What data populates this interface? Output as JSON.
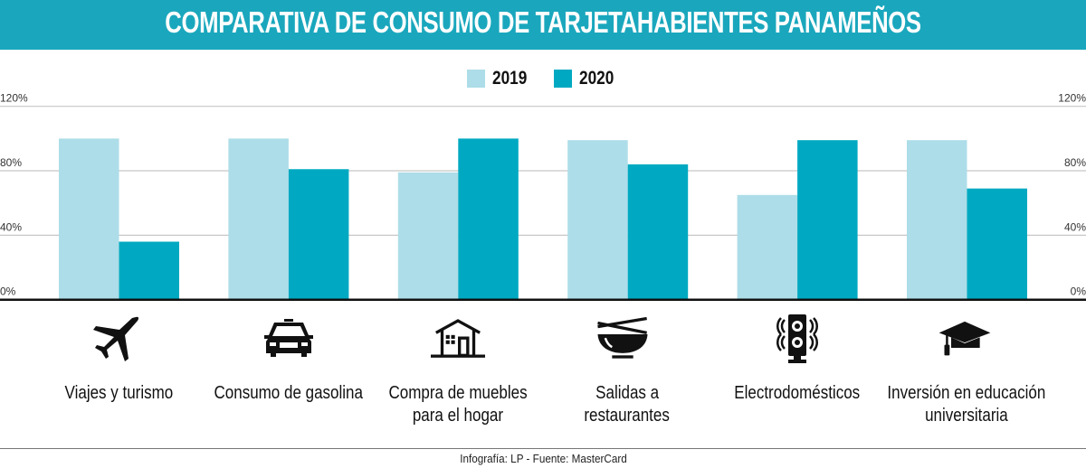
{
  "header": {
    "title": "COMPARATIVA DE CONSUMO DE TARJETAHABIENTES PANAMEÑOS"
  },
  "colors": {
    "banner": "#1aa7bd",
    "series_2019": "#addde8",
    "series_2020": "#00a9c1",
    "grid": "#c7c7c7",
    "axis": "#111111"
  },
  "footer": {
    "credit": "Infografía: LP - Fuente: MasterCard"
  },
  "icons": [
    "airplane-icon",
    "car-icon",
    "house-icon",
    "bowl-chopsticks-icon",
    "speaker-icon",
    "graduation-cap-icon"
  ],
  "chart_data": {
    "type": "bar",
    "title": "COMPARATIVA DE CONSUMO DE TARJETAHABIENTES PANAMEÑOS",
    "xlabel": "",
    "ylabel": "",
    "ylim": [
      0,
      120
    ],
    "yticks": [
      0,
      40,
      80,
      120
    ],
    "ytick_labels": [
      "0%",
      "40%",
      "80%",
      "120%"
    ],
    "y_axis_sides": [
      "left",
      "right"
    ],
    "grid": true,
    "legend_position": "top-center",
    "categories": [
      "Viajes y turismo",
      "Consumo de gasolina",
      "Compra de muebles para el hogar",
      "Salidas a restaurantes",
      "Electrodomésticos",
      "Inversión en educación universitaria"
    ],
    "category_label_lines": [
      [
        "Viajes y turismo"
      ],
      [
        "Consumo de gasolina"
      ],
      [
        "Compra de muebles",
        "para el hogar"
      ],
      [
        "Salidas a",
        "restaurantes"
      ],
      [
        "Electrodomésticos"
      ],
      [
        "Inversión en educación",
        "universitaria"
      ]
    ],
    "series": [
      {
        "name": "2019",
        "values": [
          100,
          100,
          79,
          99,
          65,
          99
        ]
      },
      {
        "name": "2020",
        "values": [
          36,
          81,
          100,
          84,
          99,
          69
        ]
      }
    ]
  }
}
